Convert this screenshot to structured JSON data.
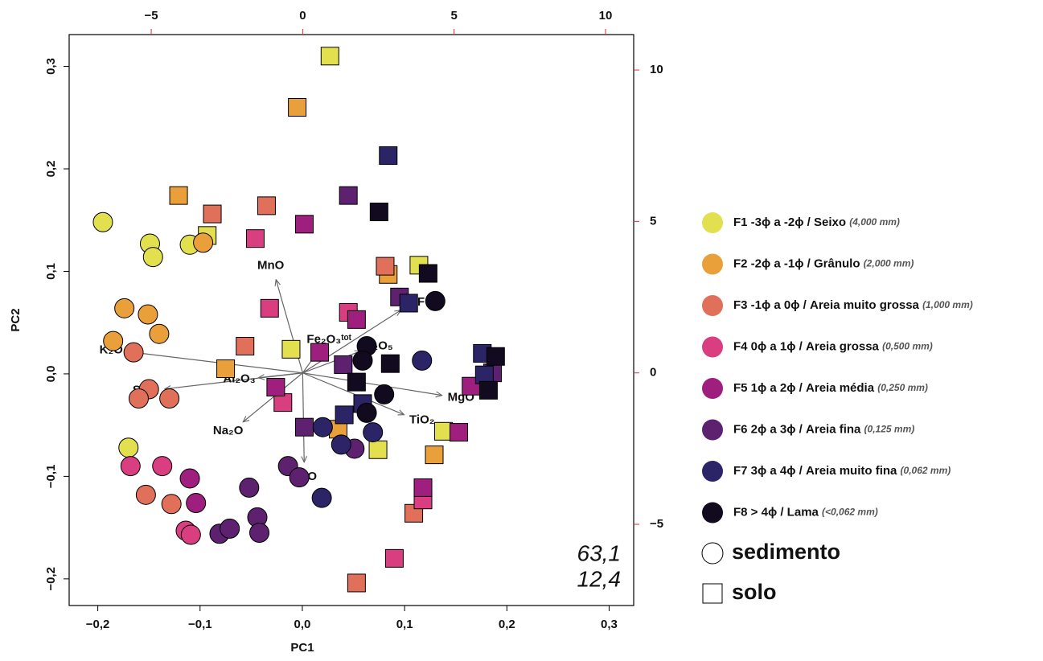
{
  "chart_data": {
    "type": "scatter",
    "xlabel": "PC1",
    "ylabel": "PC2",
    "xlim": [
      -0.228,
      0.324
    ],
    "ylim": [
      -0.226,
      0.331
    ],
    "xticks": [
      {
        "value": -0.2,
        "label": "−0,2"
      },
      {
        "value": -0.1,
        "label": "−0,1"
      },
      {
        "value": 0,
        "label": "0,0"
      },
      {
        "value": 0.1,
        "label": "0,1"
      },
      {
        "value": 0.2,
        "label": "0,2"
      },
      {
        "value": 0.3,
        "label": "0,3"
      }
    ],
    "yticks": [
      {
        "value": -0.2,
        "label": "−0,2"
      },
      {
        "value": -0.1,
        "label": "−0,1"
      },
      {
        "value": 0,
        "label": "0,0"
      },
      {
        "value": 0.1,
        "label": "0,1"
      },
      {
        "value": 0.2,
        "label": "0,2"
      },
      {
        "value": 0.3,
        "label": "0,3"
      }
    ],
    "x2lim": [
      -7.71,
      10.93
    ],
    "y2lim": [
      -7.68,
      11.17
    ],
    "x2ticks": [
      {
        "value": -5,
        "label": "−5"
      },
      0,
      5,
      10
    ],
    "y2ticks": [
      {
        "value": -5,
        "label": "−5"
      },
      0,
      5,
      10
    ],
    "secondary_tick_color": "#e03030",
    "arrow_color": "#666666",
    "loadings": [
      {
        "label": "MnO",
        "x": -0.88,
        "y": 3.08
      },
      {
        "label": "K₂O",
        "x": -5.69,
        "y": 0.69
      },
      {
        "label": "SiO₂",
        "x": -4.55,
        "y": -0.53
      },
      {
        "label": "Al₂O₃",
        "x": -1.46,
        "y": -0.16
      },
      {
        "label": "Na₂O",
        "x": -1.97,
        "y": -1.62
      },
      {
        "label": "CaO",
        "x": 0.05,
        "y": -2.95
      },
      {
        "label": "TiO₂",
        "x": 3.35,
        "y": -1.38
      },
      {
        "label": "MgO",
        "x": 4.6,
        "y": -0.74
      },
      {
        "label": "PF",
        "x": 3.24,
        "y": 2.07
      },
      {
        "label": "P₂O₅",
        "x": 1.92,
        "y": 0.72
      },
      {
        "label": "Fe₂O₃ᵗᵒᵗ",
        "x": 0.5,
        "y": 0.7
      }
    ],
    "series": [
      {
        "name": "F1 -3ϕ a -2ϕ / Seixo ",
        "size": "(4,000 mm)",
        "color": "#e3e04f",
        "x": [
          -0.195,
          -0.149,
          -0.146,
          -0.11,
          -0.17,
          0.027,
          -0.093,
          -0.011,
          0.114,
          0.138,
          0.074
        ],
        "values": [
          0.148,
          0.127,
          0.114,
          0.126,
          -0.072,
          0.31,
          0.135,
          0.024,
          0.106,
          -0.056,
          -0.074
        ],
        "marker": [
          "circle",
          "circle",
          "circle",
          "circle",
          "circle",
          "square",
          "square",
          "square",
          "square",
          "square",
          "square"
        ]
      },
      {
        "name": "F2 -2ϕ a -1ϕ / Grânulo ",
        "size": "(2,000 mm)",
        "color": "#eaa03a",
        "x": [
          -0.174,
          -0.151,
          -0.185,
          -0.14,
          -0.097,
          -0.005,
          -0.121,
          -0.075,
          0.084,
          0.035,
          0.129
        ],
        "values": [
          0.064,
          0.058,
          0.032,
          0.039,
          0.128,
          0.26,
          0.174,
          0.005,
          0.097,
          -0.054,
          -0.079
        ],
        "marker": [
          "circle",
          "circle",
          "circle",
          "circle",
          "circle",
          "square",
          "square",
          "square",
          "square",
          "square",
          "square"
        ]
      },
      {
        "name": "F3 -1ϕ a 0ϕ  / Areia muito grossa ",
        "size": "(1,000 mm)",
        "color": "#e0705a",
        "x": [
          -0.165,
          -0.15,
          -0.16,
          -0.13,
          -0.153,
          -0.128,
          -0.088,
          -0.035,
          -0.056,
          0.081,
          0.109,
          0.053
        ],
        "values": [
          0.021,
          -0.015,
          -0.024,
          -0.024,
          -0.118,
          -0.127,
          0.156,
          0.164,
          0.027,
          0.105,
          -0.136,
          -0.204
        ],
        "marker": [
          "circle",
          "circle",
          "circle",
          "circle",
          "circle",
          "circle",
          "square",
          "square",
          "square",
          "square",
          "square",
          "square"
        ]
      },
      {
        "name": "F4  0ϕ a 1ϕ  / Areia grossa ",
        "size": "(0,500 mm)",
        "color": "#d93f80",
        "x": [
          -0.168,
          -0.137,
          -0.114,
          -0.109,
          -0.046,
          -0.032,
          0.045,
          -0.019,
          0.118,
          0.09
        ],
        "values": [
          -0.09,
          -0.09,
          -0.153,
          -0.157,
          0.132,
          0.064,
          0.06,
          -0.028,
          -0.123,
          -0.18
        ],
        "marker": [
          "circle",
          "circle",
          "circle",
          "circle",
          "square",
          "square",
          "square",
          "square",
          "square",
          "square"
        ]
      },
      {
        "name": "F5 1ϕ a 2ϕ  / Areia média ",
        "size": "(0,250 mm)",
        "color": "#9e1f7e",
        "x": [
          -0.11,
          -0.104,
          0.002,
          0.053,
          0.017,
          -0.026,
          0.118,
          0.153,
          0.165
        ],
        "values": [
          -0.102,
          -0.126,
          0.146,
          0.053,
          0.021,
          -0.013,
          -0.111,
          -0.057,
          -0.012
        ],
        "marker": [
          "circle",
          "circle",
          "square",
          "square",
          "square",
          "square",
          "square",
          "square",
          "square"
        ]
      },
      {
        "name": "F6 2ϕ a 3ϕ  / Areia fina ",
        "size": "(0,125 mm)",
        "color": "#5e2170",
        "x": [
          -0.081,
          -0.071,
          -0.052,
          -0.044,
          -0.042,
          -0.014,
          -0.003,
          0.051,
          0.045,
          0.095,
          0.002,
          0.186,
          0.04
        ],
        "values": [
          -0.156,
          -0.151,
          -0.111,
          -0.14,
          -0.155,
          -0.09,
          -0.101,
          -0.073,
          0.174,
          0.075,
          -0.052,
          0.001,
          0.009
        ],
        "marker": [
          "circle",
          "circle",
          "circle",
          "circle",
          "circle",
          "circle",
          "circle",
          "circle",
          "square",
          "square",
          "square",
          "square",
          "square"
        ]
      },
      {
        "name": "F7 3ϕ a 4ϕ  / Areia muito fina ",
        "size": "(0,062 mm)",
        "color": "#2b2568",
        "x": [
          0.019,
          0.02,
          0.038,
          0.069,
          0.117,
          0.084,
          0.104,
          0.041,
          0.059,
          0.176,
          0.178
        ],
        "values": [
          -0.121,
          -0.052,
          -0.069,
          -0.057,
          0.013,
          0.213,
          0.069,
          -0.04,
          -0.029,
          0.02,
          -0.001
        ],
        "marker": [
          "circle",
          "circle",
          "circle",
          "circle",
          "circle",
          "square",
          "square",
          "square",
          "square",
          "square",
          "square"
        ]
      },
      {
        "name": "F8        > 4ϕ / Lama ",
        "size": "(<0,062 mm)",
        "color": "#120b20",
        "x": [
          0.13,
          0.063,
          0.059,
          0.08,
          0.063,
          0.075,
          0.123,
          0.086,
          0.053,
          0.189,
          0.182
        ],
        "values": [
          0.071,
          0.027,
          0.013,
          -0.02,
          -0.038,
          0.158,
          0.098,
          0.01,
          -0.008,
          0.017,
          -0.016
        ],
        "marker": [
          "circle",
          "circle",
          "circle",
          "circle",
          "circle",
          "square",
          "square",
          "square",
          "square",
          "square",
          "square"
        ]
      }
    ],
    "shapes": [
      {
        "label": "sedimento",
        "marker": "circle"
      },
      {
        "label": "solo",
        "marker": "square"
      }
    ],
    "annotations": [
      "63,1",
      "12,4"
    ]
  }
}
